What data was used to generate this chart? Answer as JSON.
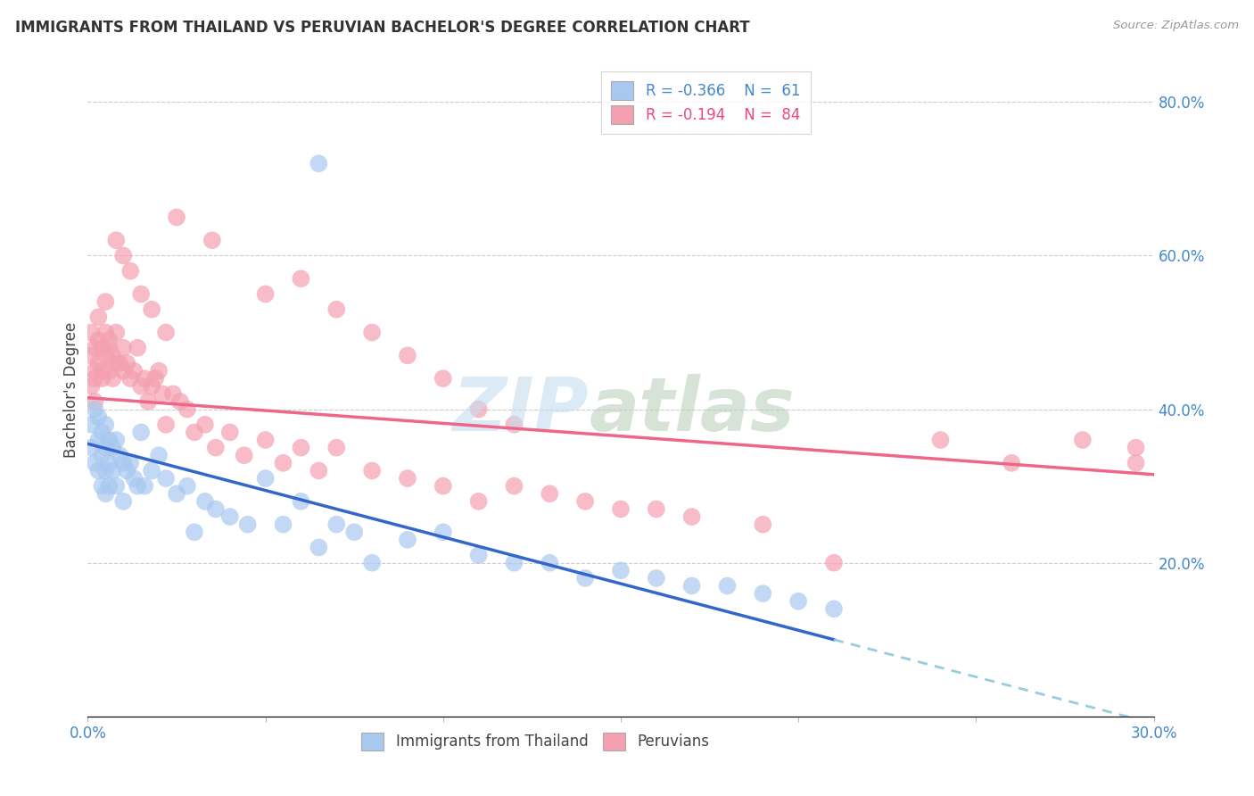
{
  "title": "IMMIGRANTS FROM THAILAND VS PERUVIAN BACHELOR'S DEGREE CORRELATION CHART",
  "source": "Source: ZipAtlas.com",
  "ylabel": "Bachelor's Degree",
  "xlim": [
    0.0,
    0.3
  ],
  "ylim": [
    0.0,
    0.85
  ],
  "color_thailand": "#a8c8f0",
  "color_peruvian": "#f4a0b0",
  "color_line_thailand": "#3366cc",
  "color_line_peruvian": "#ee6688",
  "color_line_extrapolated": "#99ccdd",
  "color_axis_text": "#4488cc",
  "watermark_zip_color": "#c8ddf0",
  "watermark_atlas_color": "#b8ccb8",
  "thailand_x": [
    0.001,
    0.001,
    0.002,
    0.002,
    0.003,
    0.003,
    0.003,
    0.004,
    0.004,
    0.004,
    0.005,
    0.005,
    0.005,
    0.005,
    0.006,
    0.006,
    0.006,
    0.007,
    0.007,
    0.008,
    0.008,
    0.009,
    0.01,
    0.01,
    0.011,
    0.012,
    0.013,
    0.014,
    0.015,
    0.016,
    0.018,
    0.02,
    0.022,
    0.025,
    0.028,
    0.03,
    0.033,
    0.036,
    0.04,
    0.045,
    0.05,
    0.055,
    0.06,
    0.065,
    0.07,
    0.075,
    0.08,
    0.09,
    0.1,
    0.11,
    0.12,
    0.13,
    0.14,
    0.15,
    0.16,
    0.17,
    0.18,
    0.19,
    0.2,
    0.21,
    0.065
  ],
  "thailand_y": [
    0.38,
    0.35,
    0.4,
    0.33,
    0.39,
    0.36,
    0.32,
    0.37,
    0.34,
    0.3,
    0.38,
    0.35,
    0.32,
    0.29,
    0.36,
    0.33,
    0.3,
    0.35,
    0.32,
    0.36,
    0.3,
    0.34,
    0.33,
    0.28,
    0.32,
    0.33,
    0.31,
    0.3,
    0.37,
    0.3,
    0.32,
    0.34,
    0.31,
    0.29,
    0.3,
    0.24,
    0.28,
    0.27,
    0.26,
    0.25,
    0.31,
    0.25,
    0.28,
    0.22,
    0.25,
    0.24,
    0.2,
    0.23,
    0.24,
    0.21,
    0.2,
    0.2,
    0.18,
    0.19,
    0.18,
    0.17,
    0.17,
    0.16,
    0.15,
    0.14,
    0.72
  ],
  "peruvian_x": [
    0.001,
    0.001,
    0.001,
    0.002,
    0.002,
    0.002,
    0.002,
    0.003,
    0.003,
    0.003,
    0.004,
    0.004,
    0.004,
    0.005,
    0.005,
    0.005,
    0.006,
    0.006,
    0.006,
    0.007,
    0.007,
    0.008,
    0.008,
    0.009,
    0.01,
    0.01,
    0.011,
    0.012,
    0.013,
    0.014,
    0.015,
    0.016,
    0.017,
    0.018,
    0.019,
    0.02,
    0.021,
    0.022,
    0.024,
    0.026,
    0.028,
    0.03,
    0.033,
    0.036,
    0.04,
    0.044,
    0.05,
    0.055,
    0.06,
    0.065,
    0.07,
    0.08,
    0.09,
    0.1,
    0.11,
    0.12,
    0.13,
    0.14,
    0.15,
    0.16,
    0.17,
    0.19,
    0.21,
    0.24,
    0.26,
    0.28,
    0.295,
    0.295,
    0.025,
    0.035,
    0.05,
    0.06,
    0.07,
    0.08,
    0.09,
    0.1,
    0.11,
    0.12,
    0.008,
    0.01,
    0.012,
    0.015,
    0.018,
    0.022
  ],
  "peruvian_y": [
    0.43,
    0.47,
    0.5,
    0.45,
    0.48,
    0.44,
    0.41,
    0.46,
    0.49,
    0.52,
    0.45,
    0.48,
    0.44,
    0.47,
    0.5,
    0.54,
    0.49,
    0.48,
    0.45,
    0.47,
    0.44,
    0.5,
    0.46,
    0.46,
    0.48,
    0.45,
    0.46,
    0.44,
    0.45,
    0.48,
    0.43,
    0.44,
    0.41,
    0.43,
    0.44,
    0.45,
    0.42,
    0.38,
    0.42,
    0.41,
    0.4,
    0.37,
    0.38,
    0.35,
    0.37,
    0.34,
    0.36,
    0.33,
    0.35,
    0.32,
    0.35,
    0.32,
    0.31,
    0.3,
    0.28,
    0.3,
    0.29,
    0.28,
    0.27,
    0.27,
    0.26,
    0.25,
    0.2,
    0.36,
    0.33,
    0.36,
    0.35,
    0.33,
    0.65,
    0.62,
    0.55,
    0.57,
    0.53,
    0.5,
    0.47,
    0.44,
    0.4,
    0.38,
    0.62,
    0.6,
    0.58,
    0.55,
    0.53,
    0.5
  ],
  "line_thai_x0": 0.0,
  "line_thai_y0": 0.355,
  "line_thai_x1": 0.21,
  "line_thai_y1": 0.1,
  "line_thai_extrap_x1": 0.3,
  "line_thai_extrap_y1": 0.0,
  "line_peru_x0": 0.0,
  "line_peru_y0": 0.415,
  "line_peru_x1": 0.3,
  "line_peru_y1": 0.315
}
